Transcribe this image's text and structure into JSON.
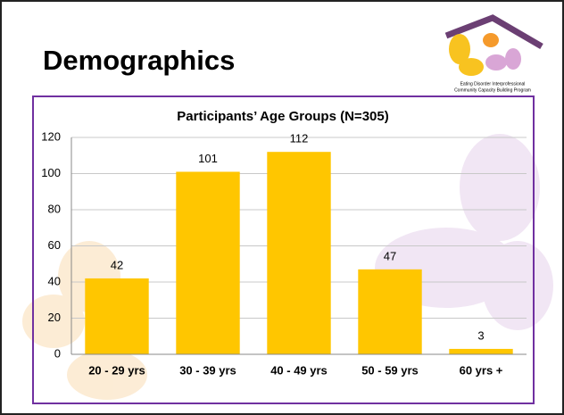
{
  "slide": {
    "title": "Demographics",
    "logo_caption": [
      "Eating Disorder Interprofessional",
      "Community Capacity Building Program"
    ]
  },
  "chart_data": {
    "type": "bar",
    "title": "Participants’ Age Groups (N=305)",
    "categories": [
      "20 - 29 yrs",
      "30 - 39 yrs",
      "40 - 49 yrs",
      "50 - 59 yrs",
      "60 yrs +"
    ],
    "values": [
      42,
      101,
      112,
      47,
      3
    ],
    "color": "#ffc600",
    "ylim": [
      0,
      120
    ],
    "yticks": [
      0,
      20,
      40,
      60,
      80,
      100,
      120
    ],
    "grid": true
  }
}
